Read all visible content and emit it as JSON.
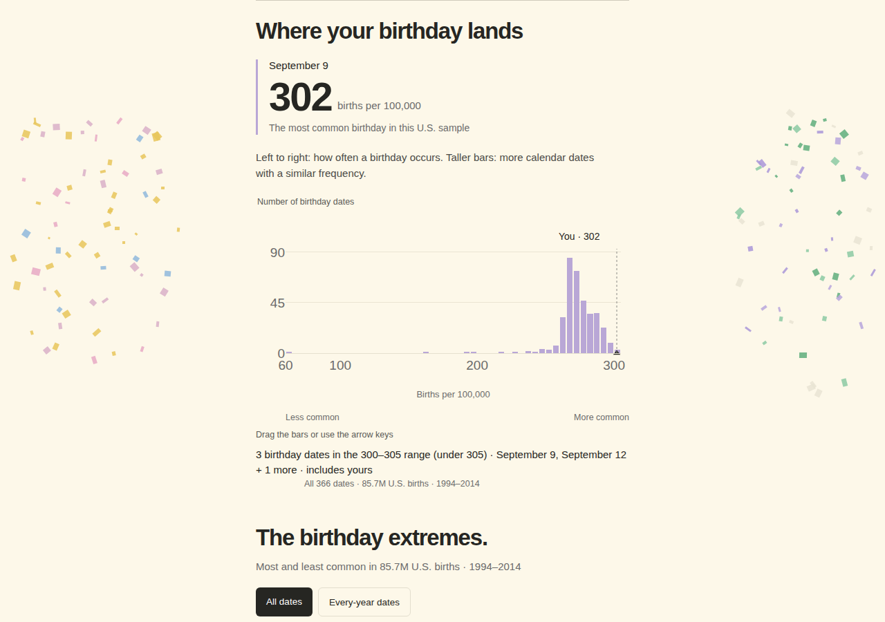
{
  "header": {
    "title": "Where your birthday lands"
  },
  "highlight": {
    "date": "September 9",
    "value": 302,
    "unit": "births per 100,000",
    "note": "The most common birthday in this U.S. sample"
  },
  "description": "Left to right: how often a birthday occurs. Taller bars: more calendar dates with a similar frequency.",
  "chart_data": {
    "type": "histogram",
    "ylabel": "Number of birthday dates",
    "xlabel": "Births per 100,000",
    "bins": [
      60,
      65,
      70,
      75,
      80,
      85,
      90,
      95,
      100,
      105,
      110,
      115,
      120,
      125,
      130,
      135,
      140,
      145,
      150,
      155,
      160,
      165,
      170,
      175,
      180,
      185,
      190,
      195,
      200,
      205,
      210,
      215,
      220,
      225,
      230,
      235,
      240,
      245,
      250,
      255,
      260,
      265,
      270,
      275,
      280,
      285,
      290,
      295,
      300,
      305
    ],
    "values": [
      1,
      0,
      0,
      0,
      0,
      0,
      0,
      0,
      0,
      0,
      0,
      0,
      0,
      0,
      0,
      0,
      0,
      0,
      0,
      0,
      1,
      0,
      0,
      0,
      0,
      0,
      1,
      1,
      0,
      0,
      0,
      1,
      0,
      1,
      0,
      2,
      1,
      4,
      3,
      7,
      32,
      85,
      73,
      47,
      35,
      36,
      23,
      9,
      3
    ],
    "color": "#b9a7d6",
    "xlim": [
      60,
      305
    ],
    "ylim": [
      0,
      93
    ],
    "xticks": [
      60,
      100,
      200,
      300
    ],
    "yticks": [
      0,
      45,
      90
    ],
    "grid": true,
    "annotations": [
      {
        "x": 302,
        "text": "You · 302"
      }
    ],
    "x_ends": [
      "Less common",
      "More common"
    ]
  },
  "hint": "Drag the bars or use the arrow keys",
  "summary": "3 birthday dates in the 300–305 range (under 305) · September 9, September 12 + 1 more · includes yours",
  "source": "All 366 dates · 85.7M U.S. births · 1994–2014",
  "extremes": {
    "title": "The birthday extremes.",
    "subtitle": "Most and least common in 85.7M U.S. births · 1994–2014",
    "buttons": [
      "All dates",
      "Every-year dates"
    ]
  }
}
